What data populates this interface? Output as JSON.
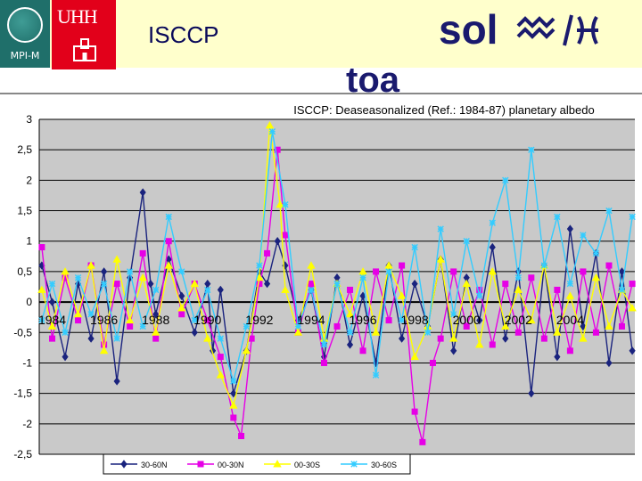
{
  "header": {
    "mpi_logo_text": "MPI-M",
    "uhh_logo_text": "UHH",
    "slide_title": "ISCCP",
    "sol_label": "sol",
    "toa_label": "toa"
  },
  "chart_data": {
    "type": "line",
    "title": "ISCCP: Deaseasonalized (Ref.: 1984-87) planetary albedo",
    "xlabel": "",
    "ylabel": "",
    "ylim": [
      -2.5,
      3
    ],
    "xlim": [
      1983.5,
      2006.5
    ],
    "yticks": [
      "3",
      "2,5",
      "2",
      "1,5",
      "1",
      "0,5",
      "0",
      "-0,5",
      "-1",
      "-1,5",
      "-2",
      "-2,5"
    ],
    "ytick_values": [
      3,
      2.5,
      2,
      1.5,
      1,
      0.5,
      0,
      -0.5,
      -1,
      -1.5,
      -2,
      -2.5
    ],
    "xticks": [
      "1984",
      "1986",
      "1988",
      "1990",
      "1992",
      "1994",
      "1996",
      "1998",
      "2000",
      "2002",
      "2004"
    ],
    "xtick_values": [
      1984,
      1986,
      1988,
      1990,
      1992,
      1994,
      1996,
      1998,
      2000,
      2002,
      2004
    ],
    "grid": true,
    "legend_position": "bottom",
    "series": [
      {
        "name": "30-60N",
        "color": "#1a237e",
        "marker": "diamond",
        "x": [
          1983.6,
          1984.0,
          1984.5,
          1985.0,
          1985.5,
          1986.0,
          1986.5,
          1987.0,
          1987.5,
          1987.8,
          1988.0,
          1988.5,
          1989.0,
          1989.5,
          1990.0,
          1990.2,
          1990.5,
          1991.0,
          1991.5,
          1992.0,
          1992.3,
          1992.7,
          1993.0,
          1993.5,
          1994.0,
          1994.5,
          1995.0,
          1995.5,
          1996.0,
          1996.5,
          1997.0,
          1997.5,
          1998.0,
          1998.5,
          1999.0,
          1999.5,
          2000.0,
          2000.5,
          2001.0,
          2001.5,
          2002.0,
          2002.5,
          2003.0,
          2003.5,
          2004.0,
          2004.5,
          2005.0,
          2005.5,
          2006.0,
          2006.4
        ],
        "values": [
          0.6,
          0.0,
          -0.9,
          0.3,
          -0.6,
          0.5,
          -1.3,
          0.4,
          1.8,
          0.3,
          -0.2,
          0.7,
          0.1,
          -0.5,
          0.3,
          -0.8,
          0.2,
          -1.5,
          -0.8,
          0.5,
          0.3,
          1.0,
          0.6,
          -0.3,
          0.2,
          -0.9,
          0.4,
          -0.7,
          0.1,
          -1.0,
          0.6,
          -0.6,
          0.3,
          -0.4,
          0.7,
          -0.8,
          0.4,
          -0.3,
          0.9,
          -0.6,
          0.5,
          -1.5,
          0.6,
          -0.9,
          1.2,
          -0.4,
          0.8,
          -1.0,
          0.5,
          -0.8
        ]
      },
      {
        "name": "00-30N",
        "color": "#e600e6",
        "marker": "square",
        "x": [
          1983.6,
          1984.0,
          1984.5,
          1985.0,
          1985.5,
          1986.0,
          1986.5,
          1987.0,
          1987.5,
          1988.0,
          1988.5,
          1989.0,
          1989.5,
          1990.0,
          1990.5,
          1991.0,
          1991.3,
          1991.7,
          1992.0,
          1992.3,
          1992.7,
          1993.0,
          1993.5,
          1994.0,
          1994.5,
          1995.0,
          1995.5,
          1996.0,
          1996.5,
          1997.0,
          1997.5,
          1998.0,
          1998.3,
          1998.7,
          1999.0,
          1999.5,
          2000.0,
          2000.5,
          2001.0,
          2001.5,
          2002.0,
          2002.5,
          2003.0,
          2003.5,
          2004.0,
          2004.5,
          2005.0,
          2005.5,
          2006.0,
          2006.4
        ],
        "values": [
          0.9,
          -0.6,
          0.4,
          -0.3,
          0.6,
          -0.7,
          0.3,
          -0.4,
          0.8,
          -0.6,
          1.0,
          -0.2,
          0.3,
          -0.3,
          -0.9,
          -1.9,
          -2.2,
          -0.6,
          0.3,
          0.8,
          2.5,
          1.1,
          -0.5,
          0.3,
          -1.0,
          -0.4,
          0.2,
          -0.8,
          0.5,
          -0.3,
          0.6,
          -1.8,
          -2.3,
          -1.0,
          -0.6,
          0.5,
          -0.4,
          0.2,
          -0.7,
          0.3,
          -0.5,
          0.4,
          -0.6,
          0.2,
          -0.8,
          0.5,
          -0.5,
          0.6,
          -0.4,
          0.3
        ]
      },
      {
        "name": "00-30S",
        "color": "#ffff00",
        "marker": "triangle",
        "x": [
          1983.6,
          1984.0,
          1984.5,
          1985.0,
          1985.5,
          1986.0,
          1986.5,
          1987.0,
          1987.5,
          1988.0,
          1988.5,
          1989.0,
          1989.5,
          1990.0,
          1990.5,
          1991.0,
          1991.5,
          1992.0,
          1992.4,
          1992.8,
          1993.0,
          1993.5,
          1994.0,
          1994.5,
          1995.0,
          1995.5,
          1996.0,
          1996.5,
          1997.0,
          1997.5,
          1998.0,
          1998.5,
          1999.0,
          1999.5,
          2000.0,
          2000.5,
          2001.0,
          2001.5,
          2002.0,
          2002.5,
          2003.0,
          2003.5,
          2004.0,
          2004.5,
          2005.0,
          2005.5,
          2006.0,
          2006.4
        ],
        "values": [
          0.2,
          -0.4,
          0.5,
          -0.2,
          0.6,
          -0.8,
          0.7,
          -0.3,
          0.4,
          -0.5,
          0.6,
          -0.1,
          0.3,
          -0.6,
          -1.2,
          -1.7,
          -0.8,
          0.4,
          2.9,
          1.6,
          0.2,
          -0.5,
          0.6,
          -0.6,
          0.3,
          -0.2,
          0.5,
          -0.5,
          0.6,
          0.1,
          -0.9,
          -0.4,
          0.7,
          -0.6,
          0.3,
          -0.7,
          0.5,
          -0.4,
          0.2,
          -0.3,
          0.6,
          -0.5,
          0.1,
          -0.6,
          0.4,
          -0.4,
          0.2,
          -0.1
        ]
      },
      {
        "name": "30-60S",
        "color": "#33ccff",
        "marker": "star",
        "x": [
          1983.6,
          1984.0,
          1984.5,
          1985.0,
          1985.5,
          1986.0,
          1986.5,
          1987.0,
          1987.5,
          1988.0,
          1988.5,
          1989.0,
          1989.5,
          1990.0,
          1990.5,
          1991.0,
          1991.5,
          1992.0,
          1992.5,
          1993.0,
          1993.5,
          1994.0,
          1994.5,
          1995.0,
          1995.5,
          1996.0,
          1996.5,
          1997.0,
          1997.5,
          1998.0,
          1998.5,
          1999.0,
          1999.5,
          2000.0,
          2000.5,
          2001.0,
          2001.5,
          2002.0,
          2002.5,
          2003.0,
          2003.5,
          2004.0,
          2004.5,
          2005.0,
          2005.5,
          2006.0,
          2006.4
        ],
        "values": [
          -0.3,
          0.3,
          -0.5,
          0.4,
          -0.2,
          0.3,
          -0.6,
          0.5,
          -0.4,
          0.2,
          1.4,
          0.5,
          -0.3,
          0.2,
          -0.6,
          -1.3,
          -0.4,
          0.6,
          2.8,
          1.6,
          -0.4,
          0.2,
          -0.7,
          0.3,
          -0.5,
          0.4,
          -1.2,
          0.5,
          -0.3,
          0.9,
          -0.5,
          1.2,
          -0.2,
          1.0,
          0.1,
          1.3,
          2.0,
          0.4,
          2.5,
          0.6,
          1.4,
          0.3,
          1.1,
          0.8,
          1.5,
          0.2,
          1.4
        ]
      }
    ]
  }
}
